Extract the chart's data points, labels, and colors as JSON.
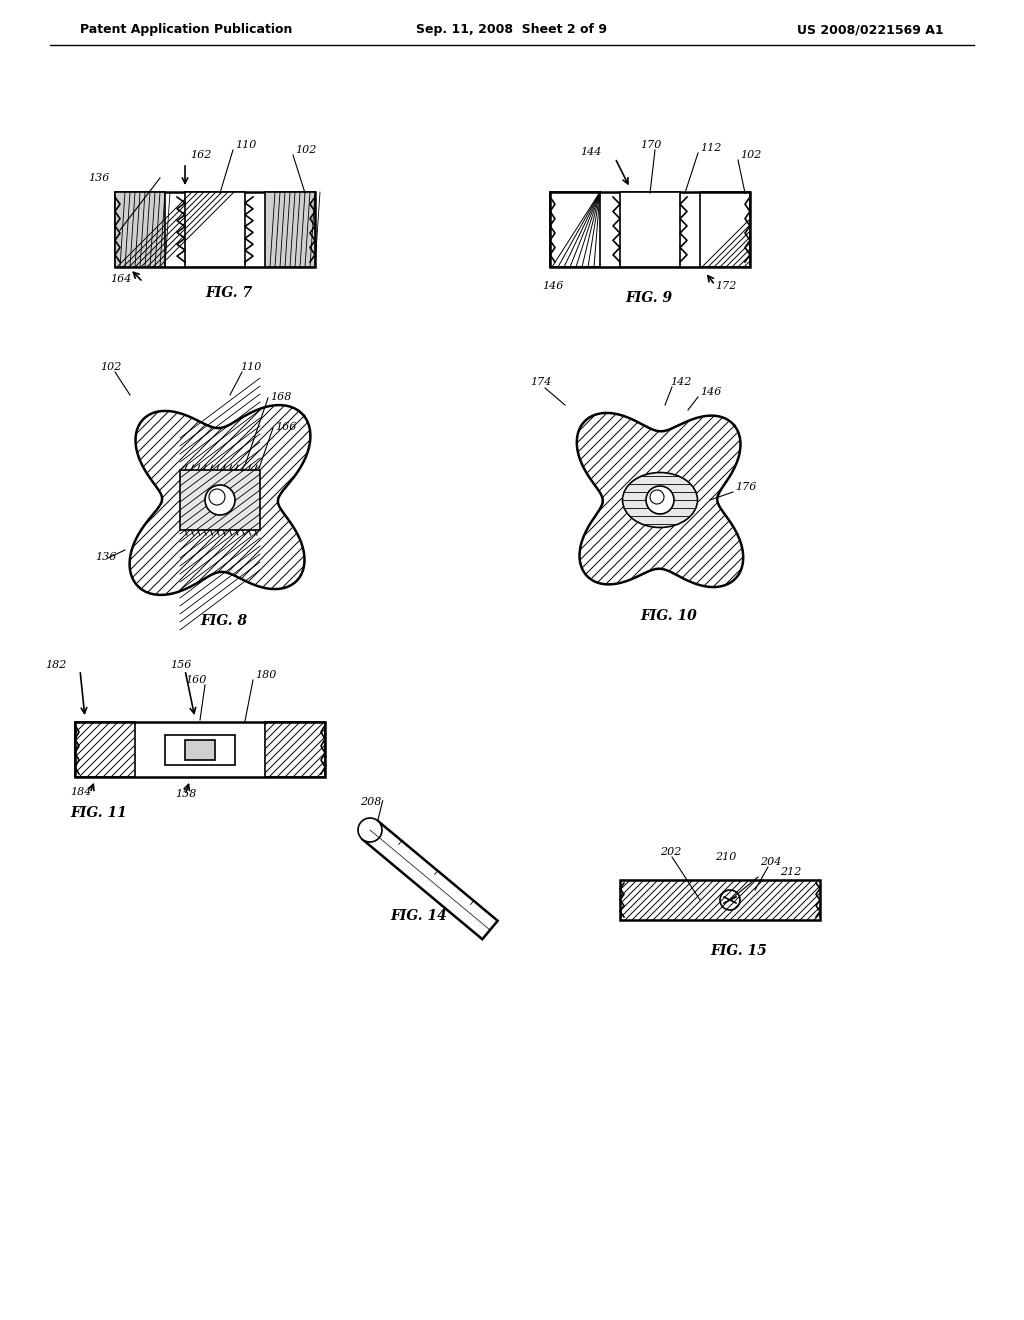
{
  "bg_color": "#ffffff",
  "line_color": "#000000",
  "header_left": "Patent Application Publication",
  "header_center": "Sep. 11, 2008  Sheet 2 of 9",
  "header_right": "US 2008/0221569 A1",
  "fig7_label": "FIG. 7",
  "fig8_label": "FIG. 8",
  "fig9_label": "FIG. 9",
  "fig10_label": "FIG. 10",
  "fig11_label": "FIG. 11",
  "fig14_label": "FIG. 14",
  "fig15_label": "FIG. 15"
}
